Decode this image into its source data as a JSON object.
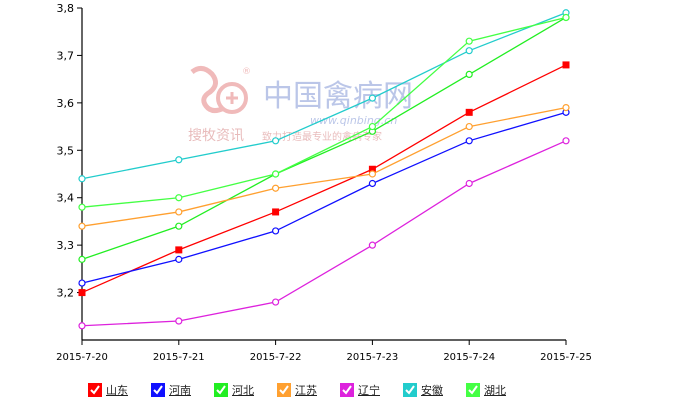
{
  "chart_data": {
    "type": "line",
    "x": [
      "2015-7-20",
      "2015-7-21",
      "2015-7-22",
      "2015-7-23",
      "2015-7-24",
      "2015-7-25"
    ],
    "ylim": [
      3.1,
      3.8
    ],
    "yticks": [
      "3,2",
      "3,3",
      "3,4",
      "3,5",
      "3,6",
      "3,7",
      "3,8"
    ],
    "grid": false,
    "legend_position": "bottom",
    "series": [
      {
        "name": "山东",
        "color": "#ff0000",
        "marker": "square-filled",
        "values": [
          3.2,
          3.29,
          3.37,
          3.46,
          3.58,
          3.68
        ]
      },
      {
        "name": "河南",
        "color": "#1010ff",
        "marker": "circle-open",
        "values": [
          3.22,
          3.27,
          3.33,
          3.43,
          3.52,
          3.58
        ]
      },
      {
        "name": "河北",
        "color": "#22ee22",
        "marker": "circle-open",
        "values": [
          3.27,
          3.34,
          3.45,
          3.54,
          3.66,
          3.78
        ]
      },
      {
        "name": "江苏",
        "color": "#ffa030",
        "marker": "circle-open",
        "values": [
          3.34,
          3.37,
          3.42,
          3.45,
          3.55,
          3.59
        ]
      },
      {
        "name": "辽宁",
        "color": "#dd22dd",
        "marker": "circle-open",
        "values": [
          3.13,
          3.14,
          3.18,
          3.3,
          3.43,
          3.52
        ]
      },
      {
        "name": "安徽",
        "color": "#22cccc",
        "marker": "circle-open",
        "values": [
          3.44,
          3.48,
          3.52,
          3.61,
          3.71,
          3.79
        ]
      },
      {
        "name": "湖北",
        "color": "#44ff44",
        "marker": "circle-open",
        "values": [
          3.38,
          3.4,
          3.45,
          3.55,
          3.73,
          3.78
        ]
      }
    ]
  },
  "watermark": {
    "site_name": "中国禽病网",
    "url": "www.qinbing.cn",
    "logo_text": "搜牧资讯",
    "slogan": "致力打造最专业的禽病专家",
    "registered_mark": "®"
  }
}
